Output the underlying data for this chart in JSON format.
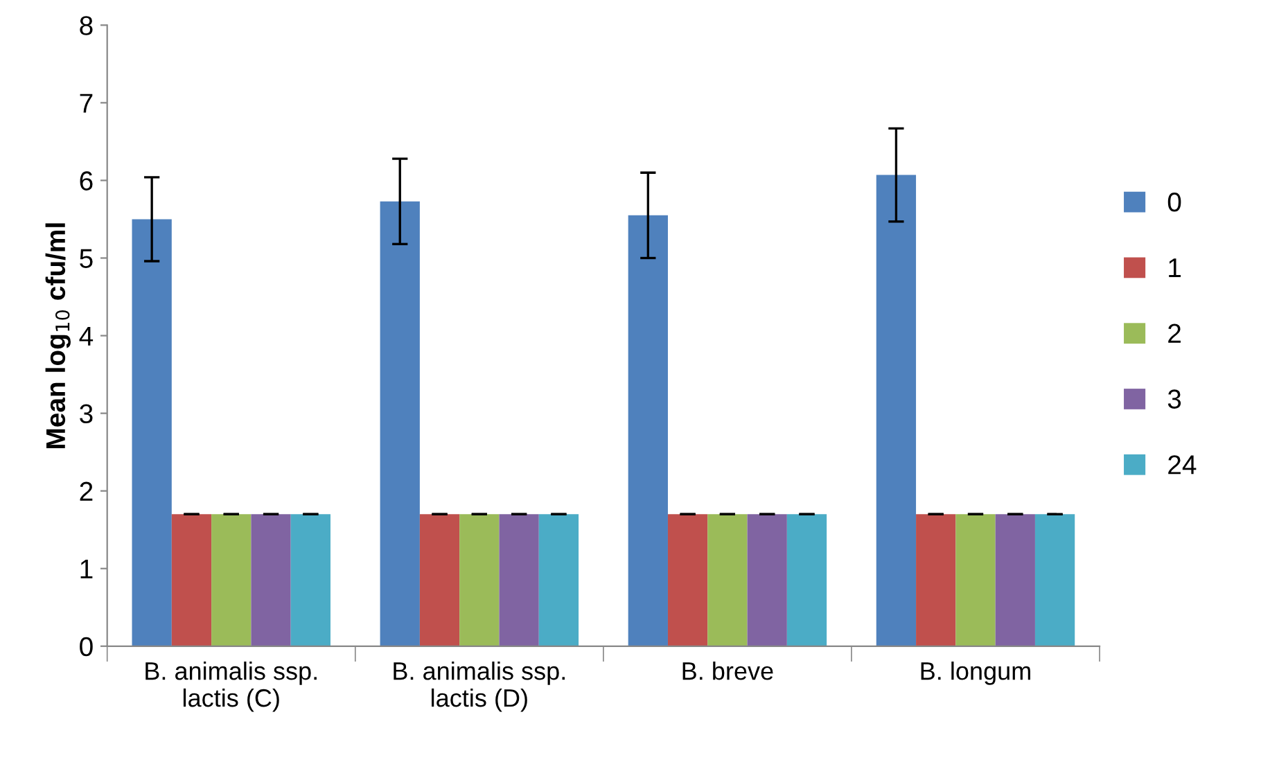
{
  "chart_data": {
    "type": "bar",
    "ylabel": "Mean log$_{10}$ cfu/ml",
    "categories": [
      "B. animalis ssp.\nlactis (C)",
      "B. animalis ssp.\nlactis (D)",
      "B. breve",
      "B. longum"
    ],
    "series": [
      {
        "name": "0",
        "color": "#4f81bd",
        "values": [
          5.5,
          5.73,
          5.55,
          6.07
        ],
        "errors": [
          0.54,
          0.55,
          0.55,
          0.6
        ]
      },
      {
        "name": "1",
        "color": "#c0504d",
        "values": [
          1.7,
          1.7,
          1.7,
          1.7
        ],
        "errors": [
          0,
          0,
          0,
          0
        ]
      },
      {
        "name": "2",
        "color": "#9bbb59",
        "values": [
          1.7,
          1.7,
          1.7,
          1.7
        ],
        "errors": [
          0,
          0,
          0,
          0
        ]
      },
      {
        "name": "3",
        "color": "#8064a2",
        "values": [
          1.7,
          1.7,
          1.7,
          1.7
        ],
        "errors": [
          0,
          0,
          0,
          0
        ]
      },
      {
        "name": "24",
        "color": "#4bacc6",
        "values": [
          1.7,
          1.7,
          1.7,
          1.7
        ],
        "errors": [
          0,
          0,
          0,
          0
        ]
      }
    ],
    "ylim": [
      0,
      8
    ],
    "yticks": [
      0,
      1,
      2,
      3,
      4,
      5,
      6,
      7,
      8
    ],
    "grid": false,
    "legend": "right"
  }
}
